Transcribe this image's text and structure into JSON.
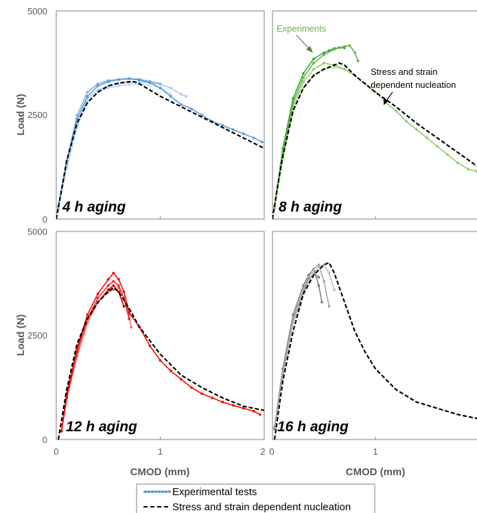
{
  "chart_data": {
    "type": "line",
    "xlabel": "CMOD (mm)",
    "ylabel": "Load (N)",
    "xlim": [
      0,
      2
    ],
    "ylim": [
      0,
      5000
    ],
    "yticks": [
      "0",
      "2500",
      "5000"
    ],
    "yticks_bottom": [
      "0",
      "2500",
      "5000"
    ],
    "xticks_left": [
      "0",
      "1",
      "2"
    ],
    "xticks_right": [
      "0",
      "1"
    ],
    "legend": {
      "placement": "bottom-center",
      "entries": [
        "Experimental tests",
        "Stress and strain dependent nucleation"
      ]
    },
    "panels": [
      {
        "title": "4 h aging",
        "colors": [
          "#5b9bd5",
          "#7fb3e0",
          "#a9c9ea",
          "#c6d9ef"
        ],
        "experimental": [
          [
            [
              0.02,
              300
            ],
            [
              0.1,
              1400
            ],
            [
              0.2,
              2400
            ],
            [
              0.3,
              2950
            ],
            [
              0.4,
              3200
            ],
            [
              0.5,
              3300
            ],
            [
              0.6,
              3350
            ],
            [
              0.7,
              3370
            ],
            [
              0.8,
              3340
            ],
            [
              0.9,
              3280
            ],
            [
              1.0,
              3150
            ],
            [
              1.1,
              2950
            ],
            [
              1.2,
              2750
            ],
            [
              1.3,
              2650
            ],
            [
              1.4,
              2500
            ],
            [
              1.5,
              2350
            ],
            [
              1.6,
              2250
            ],
            [
              1.7,
              2150
            ],
            [
              1.8,
              2050
            ],
            [
              1.9,
              1950
            ],
            [
              1.98,
              1850
            ]
          ],
          [
            [
              0.02,
              300
            ],
            [
              0.1,
              1400
            ],
            [
              0.2,
              2500
            ],
            [
              0.3,
              3050
            ],
            [
              0.4,
              3250
            ],
            [
              0.5,
              3330
            ],
            [
              0.6,
              3360
            ],
            [
              0.7,
              3380
            ],
            [
              0.8,
              3360
            ],
            [
              0.9,
              3310
            ],
            [
              1.0,
              3250
            ]
          ],
          [
            [
              0.02,
              250
            ],
            [
              0.1,
              1300
            ],
            [
              0.2,
              2300
            ],
            [
              0.3,
              2900
            ],
            [
              0.4,
              3100
            ],
            [
              0.5,
              3200
            ],
            [
              0.6,
              3250
            ],
            [
              0.7,
              3280
            ],
            [
              0.8,
              3290
            ],
            [
              0.9,
              3280
            ],
            [
              1.0,
              3240
            ],
            [
              1.1,
              3150
            ],
            [
              1.2,
              3000
            ],
            [
              1.25,
              2950
            ]
          ],
          [
            [
              0.02,
              250
            ],
            [
              0.1,
              1200
            ],
            [
              0.2,
              2200
            ],
            [
              0.3,
              2800
            ],
            [
              0.4,
              3050
            ],
            [
              0.5,
              3150
            ],
            [
              0.6,
              3200
            ],
            [
              0.7,
              3230
            ],
            [
              0.8,
              3240
            ],
            [
              0.9,
              3220
            ],
            [
              1.0,
              3150
            ],
            [
              1.1,
              3000
            ]
          ]
        ],
        "model": [
          [
            0.0,
            0
          ],
          [
            0.05,
            700
          ],
          [
            0.1,
            1400
          ],
          [
            0.2,
            2300
          ],
          [
            0.3,
            2800
          ],
          [
            0.4,
            3050
          ],
          [
            0.5,
            3200
          ],
          [
            0.6,
            3270
          ],
          [
            0.7,
            3300
          ],
          [
            0.75,
            3300
          ],
          [
            0.8,
            3250
          ],
          [
            0.9,
            3100
          ],
          [
            1.0,
            2950
          ],
          [
            1.2,
            2700
          ],
          [
            1.4,
            2450
          ],
          [
            1.6,
            2200
          ],
          [
            1.8,
            1950
          ],
          [
            2.0,
            1700
          ]
        ]
      },
      {
        "title": "8 h aging",
        "colors": [
          "#70ad47",
          "#2fae3a",
          "#8fcf6d",
          "#b5dc95"
        ],
        "experimental": [
          [
            [
              0.02,
              300
            ],
            [
              0.1,
              1600
            ],
            [
              0.2,
              2800
            ],
            [
              0.3,
              3400
            ],
            [
              0.4,
              3750
            ],
            [
              0.5,
              3950
            ],
            [
              0.6,
              4080
            ],
            [
              0.7,
              4150
            ],
            [
              0.75,
              4170
            ],
            [
              0.8,
              4000
            ],
            [
              0.83,
              3800
            ]
          ],
          [
            [
              0.02,
              300
            ],
            [
              0.1,
              1700
            ],
            [
              0.2,
              2900
            ],
            [
              0.3,
              3500
            ],
            [
              0.4,
              3850
            ],
            [
              0.5,
              4000
            ],
            [
              0.55,
              4050
            ],
            [
              0.6,
              4100
            ],
            [
              0.65,
              4120
            ],
            [
              0.7,
              4110
            ]
          ],
          [
            [
              0.02,
              250
            ],
            [
              0.1,
              1500
            ],
            [
              0.2,
              2700
            ],
            [
              0.3,
              3300
            ],
            [
              0.4,
              3600
            ],
            [
              0.5,
              3750
            ],
            [
              0.6,
              3700
            ],
            [
              0.7,
              3600
            ],
            [
              0.8,
              3450
            ],
            [
              0.9,
              3250
            ],
            [
              1.0,
              3050
            ],
            [
              1.1,
              2800
            ],
            [
              1.2,
              2600
            ],
            [
              1.3,
              2350
            ],
            [
              1.4,
              2150
            ],
            [
              1.5,
              1950
            ],
            [
              1.6,
              1750
            ],
            [
              1.7,
              1550
            ],
            [
              1.8,
              1350
            ],
            [
              1.9,
              1200
            ],
            [
              1.98,
              1150
            ]
          ],
          [
            [
              0.02,
              250
            ],
            [
              0.1,
              1450
            ],
            [
              0.2,
              2600
            ],
            [
              0.3,
              3150
            ],
            [
              0.4,
              3450
            ],
            [
              0.5,
              3600
            ],
            [
              0.6,
              3650
            ],
            [
              0.7,
              3600
            ],
            [
              0.8,
              3450
            ],
            [
              0.9,
              3250
            ],
            [
              1.0,
              3050
            ]
          ]
        ],
        "model": [
          [
            0.0,
            0
          ],
          [
            0.05,
            800
          ],
          [
            0.1,
            1500
          ],
          [
            0.2,
            2600
          ],
          [
            0.3,
            3150
          ],
          [
            0.4,
            3450
          ],
          [
            0.5,
            3600
          ],
          [
            0.6,
            3700
          ],
          [
            0.65,
            3750
          ],
          [
            0.7,
            3700
          ],
          [
            0.8,
            3450
          ],
          [
            0.9,
            3250
          ],
          [
            1.0,
            3050
          ],
          [
            1.2,
            2700
          ],
          [
            1.4,
            2300
          ],
          [
            1.6,
            1950
          ],
          [
            1.8,
            1600
          ],
          [
            2.0,
            1250
          ]
        ]
      },
      {
        "title": "12 h aging",
        "colors": [
          "#ff0000",
          "#e03030",
          "#ff6666",
          "#c00000"
        ],
        "experimental": [
          [
            [
              0.05,
              200
            ],
            [
              0.1,
              1000
            ],
            [
              0.2,
              2200
            ],
            [
              0.3,
              3000
            ],
            [
              0.4,
              3500
            ],
            [
              0.5,
              3850
            ],
            [
              0.55,
              4000
            ],
            [
              0.6,
              3850
            ],
            [
              0.65,
              3550
            ],
            [
              0.7,
              3050
            ],
            [
              0.8,
              2700
            ],
            [
              0.9,
              2250
            ],
            [
              1.0,
              1900
            ],
            [
              1.1,
              1650
            ],
            [
              1.2,
              1450
            ],
            [
              1.3,
              1250
            ],
            [
              1.4,
              1100
            ],
            [
              1.5,
              1000
            ],
            [
              1.6,
              900
            ],
            [
              1.7,
              820
            ],
            [
              1.8,
              750
            ],
            [
              1.9,
              680
            ],
            [
              1.96,
              600
            ]
          ],
          [
            [
              0.05,
              200
            ],
            [
              0.1,
              1000
            ],
            [
              0.2,
              2100
            ],
            [
              0.3,
              2900
            ],
            [
              0.4,
              3400
            ],
            [
              0.5,
              3700
            ],
            [
              0.55,
              3800
            ],
            [
              0.6,
              3700
            ],
            [
              0.65,
              3400
            ],
            [
              0.7,
              2900
            ]
          ],
          [
            [
              0.05,
              200
            ],
            [
              0.1,
              1000
            ],
            [
              0.2,
              2000
            ],
            [
              0.3,
              2800
            ],
            [
              0.4,
              3300
            ],
            [
              0.5,
              3550
            ],
            [
              0.55,
              3600
            ],
            [
              0.6,
              3650
            ],
            [
              0.65,
              3400
            ],
            [
              0.7,
              3000
            ],
            [
              0.72,
              2700
            ]
          ],
          [
            [
              0.05,
              200
            ],
            [
              0.1,
              1100
            ],
            [
              0.2,
              2150
            ],
            [
              0.3,
              2900
            ],
            [
              0.4,
              3300
            ],
            [
              0.5,
              3600
            ],
            [
              0.55,
              3700
            ],
            [
              0.6,
              3550
            ],
            [
              0.65,
              3200
            ]
          ]
        ],
        "model": [
          [
            0.02,
            0
          ],
          [
            0.1,
            1200
          ],
          [
            0.2,
            2300
          ],
          [
            0.3,
            2900
          ],
          [
            0.4,
            3300
          ],
          [
            0.5,
            3550
          ],
          [
            0.55,
            3650
          ],
          [
            0.6,
            3550
          ],
          [
            0.7,
            3150
          ],
          [
            0.8,
            2700
          ],
          [
            1.0,
            2050
          ],
          [
            1.2,
            1550
          ],
          [
            1.4,
            1250
          ],
          [
            1.6,
            1000
          ],
          [
            1.8,
            800
          ],
          [
            2.0,
            700
          ]
        ]
      },
      {
        "title": "16 h aging",
        "colors": [
          "#a6a6a6",
          "#808080",
          "#bfbfbf",
          "#7f7f7f"
        ],
        "experimental": [
          [
            [
              0.02,
              300
            ],
            [
              0.1,
              1600
            ],
            [
              0.2,
              2900
            ],
            [
              0.3,
              3600
            ],
            [
              0.35,
              3900
            ],
            [
              0.4,
              4100
            ],
            [
              0.45,
              4200
            ],
            [
              0.5,
              3800
            ],
            [
              0.55,
              3200
            ]
          ],
          [
            [
              0.02,
              300
            ],
            [
              0.1,
              1700
            ],
            [
              0.2,
              3000
            ],
            [
              0.3,
              3700
            ],
            [
              0.35,
              3950
            ],
            [
              0.4,
              4100
            ],
            [
              0.45,
              3700
            ],
            [
              0.48,
              3300
            ]
          ],
          [
            [
              0.02,
              300
            ],
            [
              0.1,
              1500
            ],
            [
              0.2,
              2800
            ],
            [
              0.3,
              3500
            ],
            [
              0.35,
              3800
            ],
            [
              0.4,
              4000
            ],
            [
              0.45,
              4150
            ],
            [
              0.5,
              4200
            ],
            [
              0.55,
              4000
            ],
            [
              0.6,
              3600
            ]
          ],
          [
            [
              0.02,
              250
            ],
            [
              0.1,
              1550
            ],
            [
              0.2,
              2850
            ],
            [
              0.3,
              3550
            ],
            [
              0.35,
              3850
            ],
            [
              0.4,
              4000
            ],
            [
              0.45,
              3900
            ]
          ]
        ],
        "model": [
          [
            0.02,
            0
          ],
          [
            0.1,
            1400
          ],
          [
            0.2,
            2600
          ],
          [
            0.3,
            3500
          ],
          [
            0.4,
            3950
          ],
          [
            0.5,
            4200
          ],
          [
            0.55,
            4250
          ],
          [
            0.6,
            4000
          ],
          [
            0.7,
            3300
          ],
          [
            0.8,
            2600
          ],
          [
            0.9,
            2100
          ],
          [
            1.0,
            1700
          ],
          [
            1.2,
            1200
          ],
          [
            1.4,
            900
          ],
          [
            1.6,
            750
          ],
          [
            1.8,
            600
          ],
          [
            2.0,
            500
          ]
        ]
      }
    ],
    "annotations": {
      "experiments": "Experiments",
      "model_line1": "Stress and strain",
      "model_line2": "dependent nucleation"
    }
  }
}
